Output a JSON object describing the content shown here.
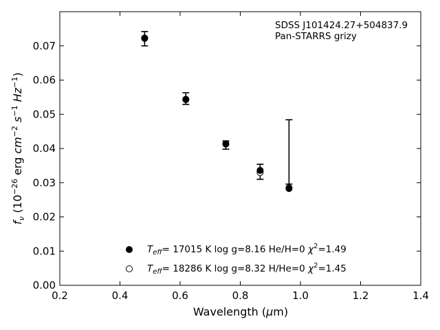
{
  "chart_data": {
    "type": "scatter",
    "title": "",
    "annotation": [
      "SDSS J101424.27+504837.9",
      "Pan-STARRS grizy"
    ],
    "xlabel": "Wavelength (μm)",
    "ylabel": "fν (10⁻²⁶ erg cm⁻² s⁻¹ Hz⁻¹)",
    "xlim": [
      0.2,
      1.4
    ],
    "ylim": [
      0.0,
      0.08
    ],
    "xticks": [
      "0.2",
      "0.4",
      "0.6",
      "0.8",
      "1.0",
      "1.2",
      "1.4"
    ],
    "yticks": [
      "0.00",
      "0.01",
      "0.02",
      "0.03",
      "0.04",
      "0.05",
      "0.06",
      "0.07"
    ],
    "grid": false,
    "legend_position": "lower-center",
    "observed": [
      {
        "x": 0.482,
        "y": 0.0721,
        "err": 0.0021
      },
      {
        "x": 0.619,
        "y": 0.0546,
        "err": 0.0017
      },
      {
        "x": 0.752,
        "y": 0.041,
        "err": 0.0012
      },
      {
        "x": 0.866,
        "y": 0.0332,
        "err": 0.0022
      },
      {
        "x": 0.962,
        "y": 0.039,
        "err": 0.0094
      }
    ],
    "series": [
      {
        "name": "Teff= 17015 K  log g=8.16  He/H=0  χ²=1.49",
        "marker": "filled",
        "x": [
          0.482,
          0.619,
          0.752,
          0.866,
          0.962
        ],
        "y": [
          0.0723,
          0.0543,
          0.0413,
          0.0336,
          0.0283
        ]
      },
      {
        "name": "Teff= 18286 K  log g=8.32  H/He=0  χ²=1.45",
        "marker": "open",
        "x": [
          0.482,
          0.619,
          0.752,
          0.866,
          0.962
        ],
        "y": [
          0.0722,
          0.0544,
          0.0414,
          0.033,
          0.0285
        ]
      }
    ],
    "legend": [
      {
        "teff": "T",
        "teff_sub": "eff",
        "rest": "= 17015 K  log g=8.16  He/H=0  ",
        "chi": "χ",
        "chi_sup": "2",
        "chi_val": "=1.49"
      },
      {
        "teff": "T",
        "teff_sub": "eff",
        "rest": "= 18286 K  log g=8.32  H/He=0  ",
        "chi": "χ",
        "chi_sup": "2",
        "chi_val": "=1.45"
      }
    ]
  }
}
